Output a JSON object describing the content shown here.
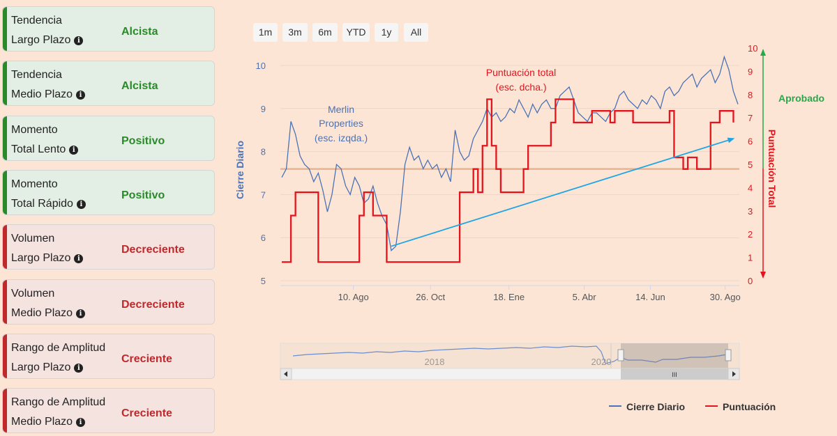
{
  "indicators": [
    {
      "line1": "Tendencia",
      "line2": "Largo Plazo",
      "value": "Alcista",
      "status": "green"
    },
    {
      "line1": "Tendencia",
      "line2": "Medio Plazo",
      "value": "Alcista",
      "status": "green"
    },
    {
      "line1": "Momento",
      "line2": "Total Lento",
      "value": "Positivo",
      "status": "green"
    },
    {
      "line1": "Momento",
      "line2": "Total Rápido",
      "value": "Positivo",
      "status": "green"
    },
    {
      "line1": "Volumen",
      "line2": "Largo Plazo",
      "value": "Decreciente",
      "status": "red"
    },
    {
      "line1": "Volumen",
      "line2": "Medio Plazo",
      "value": "Decreciente",
      "status": "red"
    },
    {
      "line1": "Rango de Amplitud",
      "line2": "Largo Plazo",
      "value": "Creciente",
      "status": "red"
    },
    {
      "line1": "Rango de Amplitud",
      "line2": "Medio Plazo",
      "value": "Creciente",
      "status": "red"
    }
  ],
  "range_buttons": [
    "1m",
    "3m",
    "6m",
    "YTD",
    "1y",
    "All"
  ],
  "colors": {
    "price": "#4a72b5",
    "score": "#e3141c",
    "reference": "#e8b48f",
    "arrow": "#1da5e6",
    "aprobado": "#27a84a",
    "green": "#2a8a2a",
    "red": "#c0282c"
  },
  "annotations": {
    "merlin": [
      "Merlin",
      "Properties",
      "(esc. izqda.)"
    ],
    "puntuacion": [
      "Puntuación total",
      "(esc. dcha.)"
    ],
    "aprobado": "Aprobado",
    "left_axis_title": "Cierre Diario",
    "right_axis_title": "Puntuación Total"
  },
  "navigator": {
    "years": [
      "2018",
      "2020"
    ],
    "grip": "III"
  },
  "legend": {
    "price": "Cierre Diario",
    "score": "Puntuación"
  },
  "chart_data": {
    "type": "line",
    "x_ticks": [
      "10. Ago",
      "26. Oct",
      "18. Ene",
      "5. Abr",
      "14. Jun",
      "30. Ago"
    ],
    "y_left": {
      "label": "Cierre Diario",
      "range": [
        5,
        10
      ],
      "ticks": [
        5,
        6,
        7,
        8,
        9,
        10
      ]
    },
    "y_right": {
      "label": "Puntuación Total",
      "range": [
        0,
        10
      ],
      "ticks": [
        0,
        1,
        2,
        3,
        4,
        5,
        6,
        7,
        8,
        9,
        10
      ]
    },
    "reference_line": {
      "axis": "right",
      "value": 4.8
    },
    "series": [
      {
        "name": "Cierre Diario",
        "axis": "left",
        "x": [
          0,
          1,
          2,
          3,
          4,
          5,
          6,
          7,
          8,
          9,
          10,
          11,
          12,
          13,
          14,
          15,
          16,
          17,
          18,
          19,
          20,
          21,
          22,
          23,
          24,
          25,
          26,
          27,
          28,
          29,
          30,
          31,
          32,
          33,
          34,
          35,
          36,
          37,
          38,
          39,
          40,
          41,
          42,
          43,
          44,
          45,
          46,
          47,
          48,
          49,
          50,
          51,
          52,
          53,
          54,
          55,
          56,
          57,
          58,
          59,
          60,
          61,
          62,
          63,
          64,
          65,
          66,
          67,
          68,
          69,
          70,
          71,
          72,
          73,
          74,
          75,
          76,
          77,
          78,
          79,
          80,
          81,
          82,
          83,
          84,
          85,
          86,
          87,
          88,
          89,
          90,
          91,
          92,
          93,
          94,
          95,
          96,
          97,
          98,
          99,
          100
        ],
        "values": [
          7.4,
          7.6,
          8.7,
          8.4,
          7.9,
          7.7,
          7.6,
          7.3,
          7.5,
          7.1,
          6.6,
          7.0,
          7.7,
          7.6,
          7.2,
          7.0,
          7.4,
          7.2,
          6.8,
          6.9,
          7.2,
          6.8,
          6.5,
          6.3,
          5.7,
          5.8,
          6.6,
          7.7,
          8.1,
          7.8,
          7.9,
          7.6,
          7.8,
          7.6,
          7.7,
          7.4,
          7.6,
          7.3,
          8.5,
          8.0,
          7.8,
          7.9,
          8.3,
          8.5,
          8.7,
          9.0,
          8.8,
          8.9,
          8.7,
          8.8,
          9.0,
          8.9,
          9.2,
          9.0,
          8.8,
          9.1,
          8.9,
          9.1,
          9.2,
          9.0,
          9.0,
          9.3,
          9.4,
          9.5,
          9.2,
          8.9,
          8.8,
          8.7,
          8.9,
          8.9,
          8.8,
          8.7,
          8.9,
          9.0,
          9.3,
          9.4,
          9.2,
          9.1,
          9.0,
          9.2,
          9.1,
          9.3,
          9.2,
          9.0,
          9.4,
          9.5,
          9.3,
          9.4,
          9.6,
          9.7,
          9.8,
          9.5,
          9.7,
          9.8,
          9.9,
          9.6,
          9.8,
          10.2,
          9.9,
          9.4,
          9.1
        ]
      },
      {
        "name": "Puntuación",
        "axis": "right",
        "step": true,
        "x": [
          0,
          2,
          3,
          8,
          9,
          17,
          18,
          20,
          23,
          38,
          39,
          42,
          43,
          44,
          45,
          46,
          47,
          48,
          53,
          54,
          59,
          60,
          63,
          64,
          65,
          66,
          68,
          72,
          73,
          76,
          77,
          79,
          82,
          85,
          86,
          87,
          88,
          89,
          90,
          91,
          94,
          95,
          96,
          98,
          99
        ],
        "values": [
          0.8,
          2.8,
          3.8,
          0.8,
          0.8,
          2.8,
          3.8,
          2.8,
          0.8,
          0.8,
          3.8,
          4.8,
          3.8,
          5.8,
          7.8,
          5.8,
          4.8,
          3.8,
          4.8,
          5.8,
          6.8,
          7.8,
          7.8,
          6.8,
          6.8,
          6.8,
          7.3,
          6.8,
          7.3,
          7.3,
          6.8,
          6.8,
          6.8,
          7.3,
          5.3,
          5.3,
          4.8,
          5.3,
          5.3,
          4.8,
          6.8,
          6.8,
          7.3,
          7.3,
          6.8
        ]
      }
    ],
    "arrow": {
      "from_x": 24,
      "from_y_left": 5.8,
      "to_x": 99,
      "to_y_left": 8.3
    }
  }
}
